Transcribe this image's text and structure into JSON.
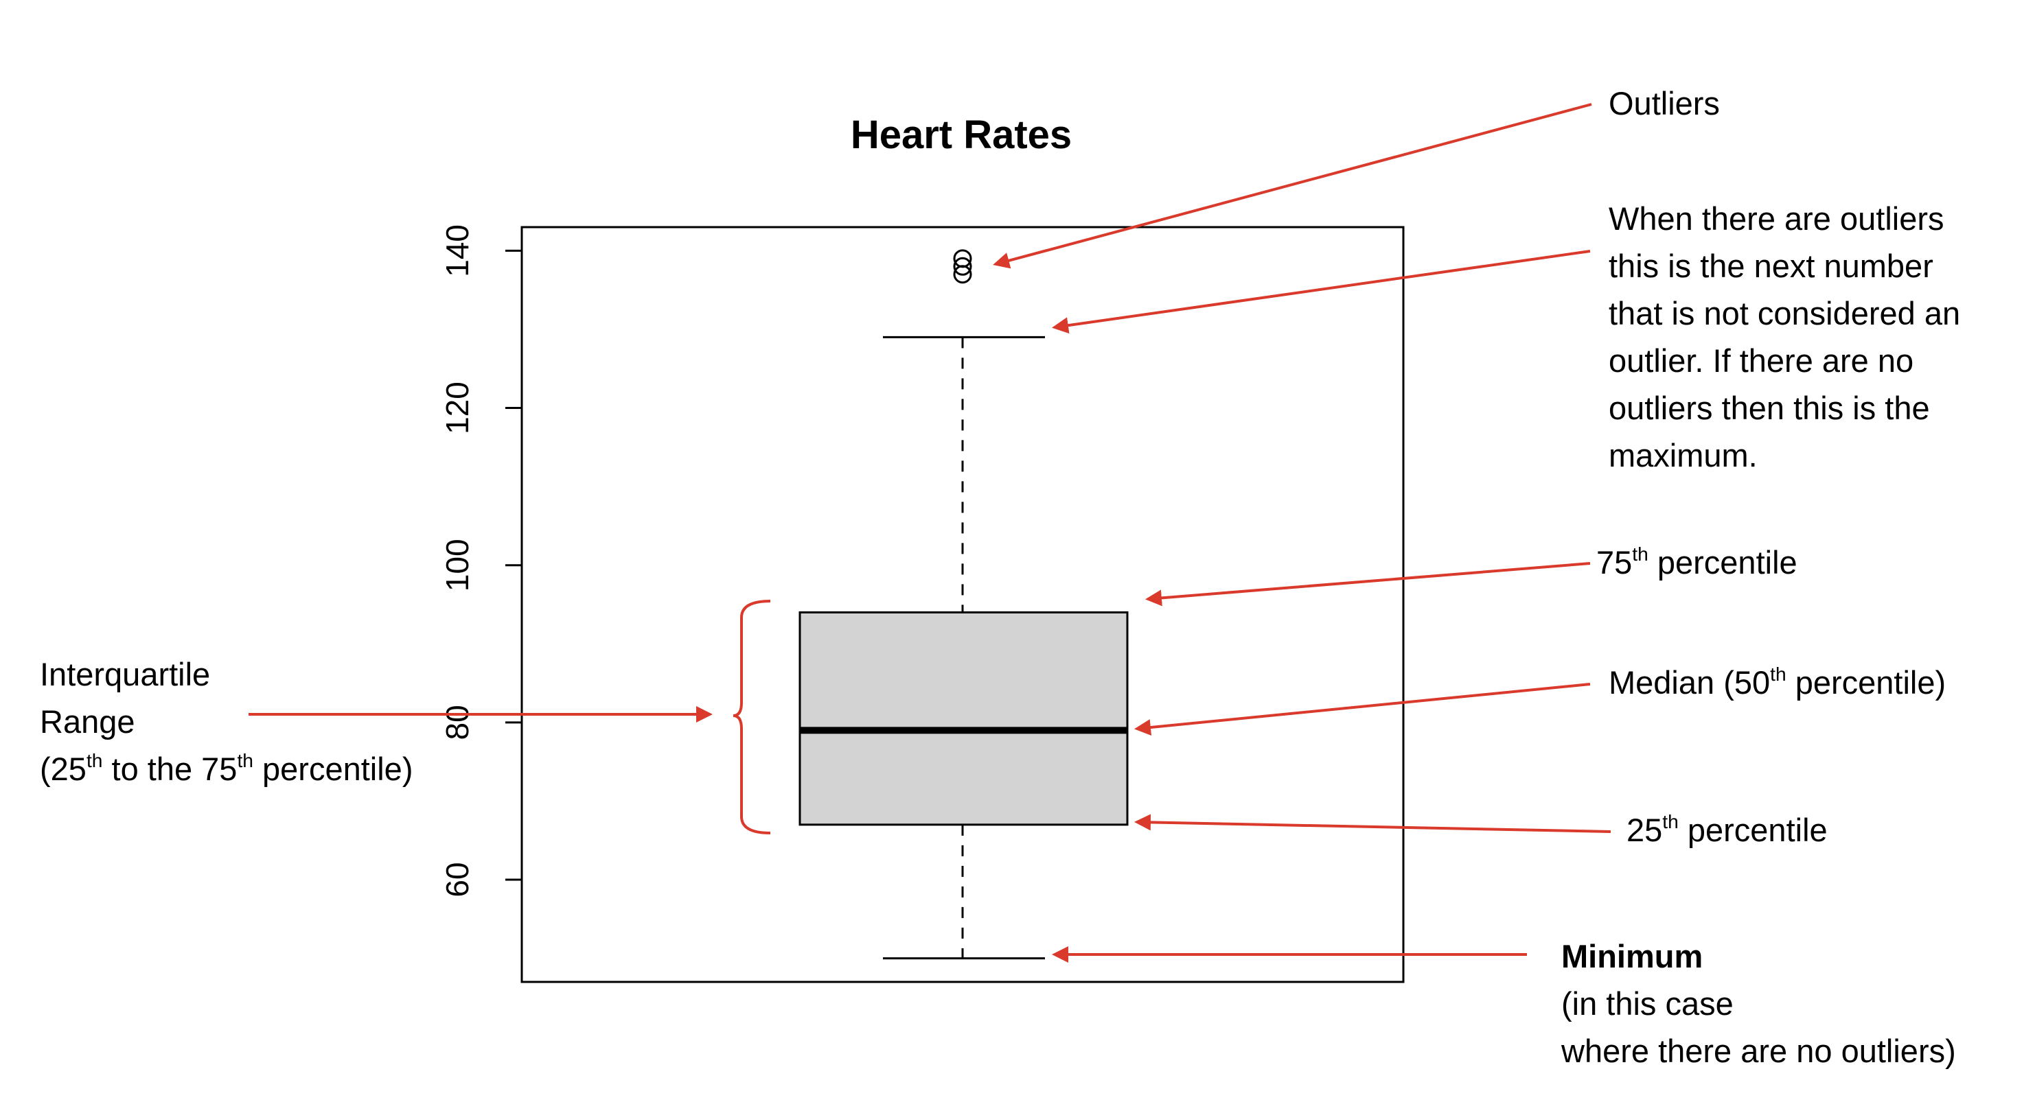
{
  "chart_data": {
    "type": "boxplot",
    "title": "Heart Rates",
    "ylim": [
      47,
      143
    ],
    "yticks": [
      60,
      80,
      100,
      120,
      140
    ],
    "box": {
      "whisker_low": 50,
      "q1": 67,
      "median": 79,
      "q3": 94,
      "whisker_high": 129
    },
    "outliers": [
      137,
      138,
      139
    ]
  },
  "annotations": {
    "outliers": {
      "text": "Outliers"
    },
    "upper_whisker": {
      "lines": [
        "When there are outliers",
        "this is the next number",
        "that is not considered an",
        "outlier. If there are no",
        "outliers then this is the",
        "maximum."
      ]
    },
    "q3": {
      "num": "75",
      "sup": "th",
      "after": " percentile"
    },
    "median": {
      "before": "Median (50",
      "sup": "th",
      "after": " percentile)"
    },
    "q1": {
      "num": "25",
      "sup": "th",
      "after": " percentile"
    },
    "iqr": {
      "line1": "Interquartile",
      "line2": "Range",
      "line3_a": "(25",
      "line3_sup1": "th",
      "line3_b": " to the 75",
      "line3_sup2": "th",
      "line3_c": " percentile)"
    },
    "minimum": {
      "title": "Minimum",
      "line2": "(in this case",
      "line3": "where there are no outliers)"
    }
  },
  "colors": {
    "arrow": "#d93a2b",
    "box_fill": "#d3d3d3",
    "ink": "#000000"
  }
}
